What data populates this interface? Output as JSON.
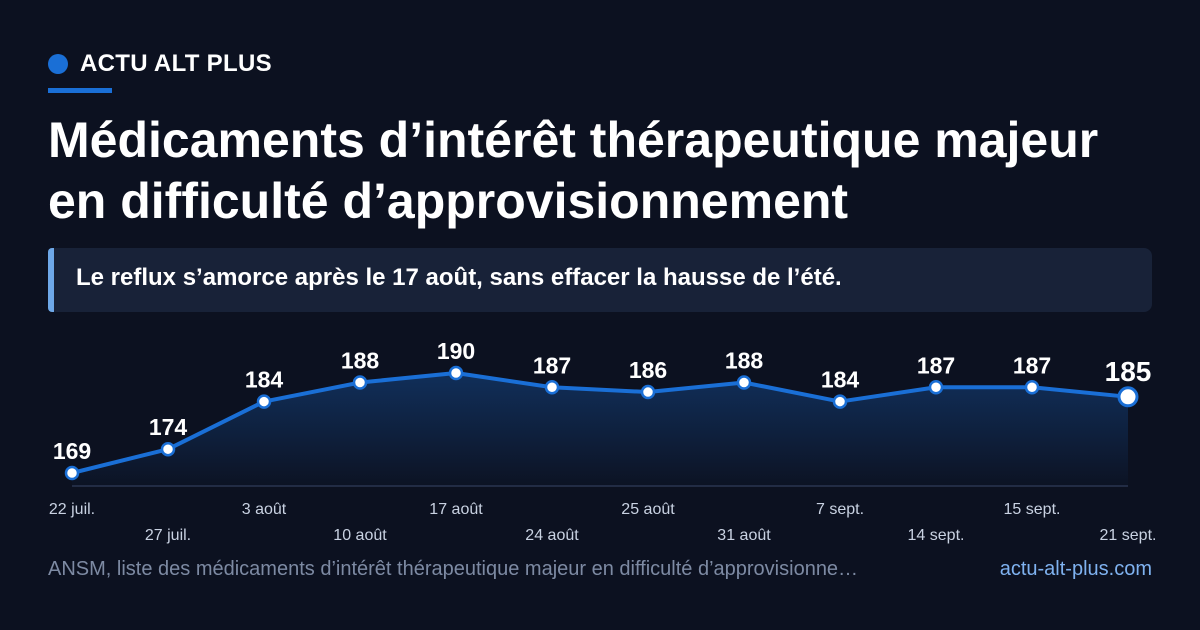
{
  "brand": {
    "name": "ACTU ALT PLUS"
  },
  "title": "Médicaments d’intérêt thérapeutique majeur en difficulté d’approvisionnement",
  "subtitle": "Le reflux s’amorce après le 17 août, sans effacer la hausse de l’été.",
  "footer": {
    "source": "ANSM, liste des médicaments d’intérêt thérapeutique majeur en difficulté d’approvisionne…",
    "site": "actu-alt-plus.com"
  },
  "colors": {
    "background": "#0c1120",
    "accent": "#1a6fd6",
    "line": "#1a6fd6",
    "point_fill": "#ffffff",
    "text_muted": "#7d8aa3",
    "link": "#7fb2f0"
  },
  "chart_data": {
    "type": "area",
    "categories": [
      "22 juil.",
      "27 juil.",
      "3 août",
      "10 août",
      "17 août",
      "24 août",
      "25 août",
      "31 août",
      "7 sept.",
      "14 sept.",
      "15 sept.",
      "21 sept."
    ],
    "values": [
      169,
      174,
      184,
      188,
      190,
      187,
      186,
      188,
      184,
      187,
      187,
      185
    ],
    "data_labels": [
      "169",
      "174",
      "184",
      "188",
      "190",
      "187",
      "186",
      "188",
      "184",
      "187",
      "187",
      "185"
    ],
    "highlight_last": true,
    "grid": false,
    "legend": "none"
  }
}
